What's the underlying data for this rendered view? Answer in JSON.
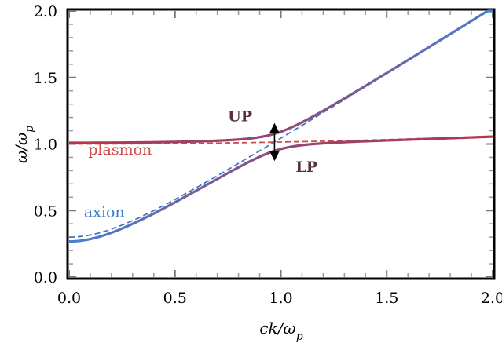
{
  "chart_data": {
    "type": "line",
    "xlabel": "ck/ωp",
    "ylabel": "ω/ωp",
    "xlim": [
      0,
      2
    ],
    "ylim": [
      0,
      2
    ],
    "x_ticks": [
      "0.0",
      "0.5",
      "1.0",
      "1.5",
      "2.0"
    ],
    "y_ticks": [
      "0.0",
      "0.5",
      "1.0",
      "1.5",
      "2.0"
    ],
    "grid": false,
    "parameters": {
      "axion_mass": 0.3,
      "coupling": 0.13
    },
    "series": [
      {
        "name": "plasmon",
        "style": "dashed",
        "color": "#d24b4b",
        "label_x": 0.09,
        "label_y": 0.92
      },
      {
        "name": "axion",
        "style": "dashed",
        "color": "#3a78c8",
        "label_x": 0.07,
        "label_y": 0.45
      },
      {
        "name": "UP",
        "style": "solid",
        "color_start": "#b8344a",
        "color_end": "#4a7fd0",
        "label_x": 0.75,
        "label_y": 1.17
      },
      {
        "name": "LP",
        "style": "solid",
        "color_start": "#4a7fd0",
        "color_end": "#b8344a",
        "label_x": 1.07,
        "label_y": 0.79
      }
    ],
    "annotation": {
      "type": "double-arrow",
      "x": 0.97,
      "y_from": 0.9,
      "y_to": 1.13
    }
  }
}
